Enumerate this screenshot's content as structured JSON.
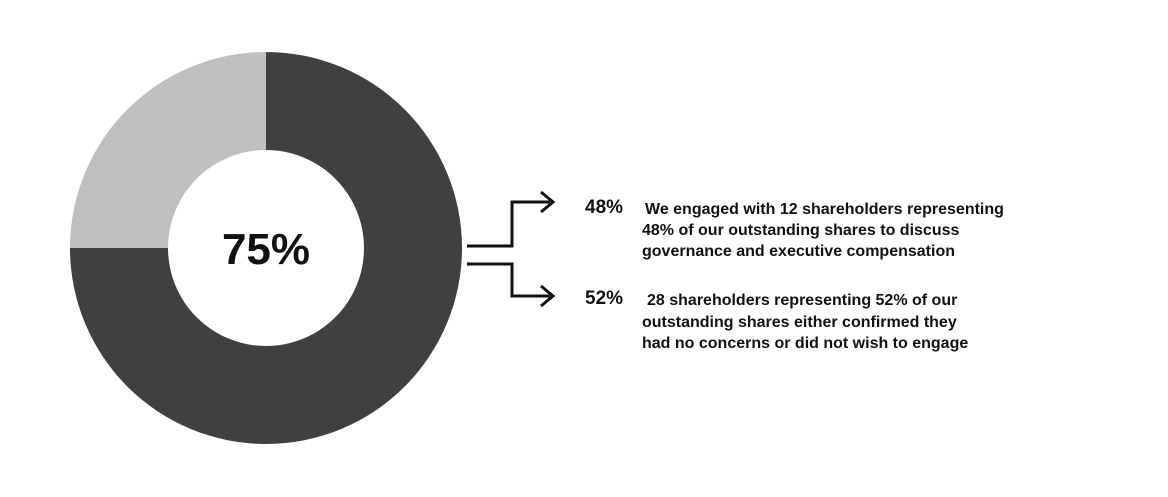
{
  "chart_data": {
    "type": "pie",
    "variant": "donut",
    "center_label": "75%",
    "slices": [
      {
        "value": 75,
        "color": "#404040"
      },
      {
        "value": 25,
        "color": "#bfbfbf"
      }
    ],
    "annotations": [
      {
        "percent": "48%",
        "lines": [
          "We engaged with 12 shareholders representing",
          "48% of our outstanding shares  to discuss",
          "governance and executive compensation"
        ]
      },
      {
        "percent": "52%",
        "lines": [
          "28 shareholders representing  52% of our",
          "outstanding shares either confirmed they",
          "had no concerns or did not wish to engage"
        ]
      }
    ]
  },
  "colors": {
    "dark": "#404040",
    "light": "#bfbfbf",
    "text": "#111111",
    "background": "#ffffff"
  }
}
